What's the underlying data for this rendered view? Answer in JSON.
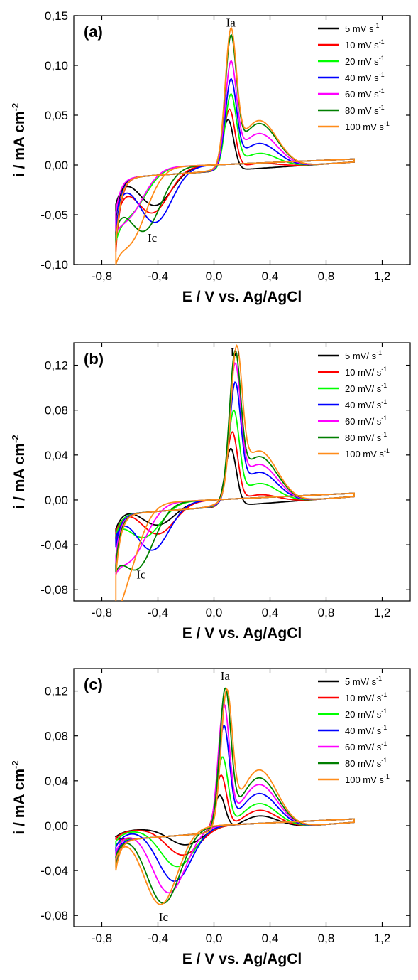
{
  "chart_data": [
    {
      "type": "line",
      "panel_label": "(a)",
      "xlabel": "E / V vs. Ag/AgCl",
      "ylabel": "i / mA cm",
      "ylabel_sup": "-2",
      "xlim": [
        -1.0,
        1.4
      ],
      "ylim": [
        -0.1,
        0.15
      ],
      "xticks": [
        -0.8,
        -0.4,
        0.0,
        0.4,
        0.8,
        1.2
      ],
      "xtick_labels": [
        "-0,8",
        "-0,4",
        "0,0",
        "0,4",
        "0,8",
        "1,2"
      ],
      "yticks": [
        -0.1,
        -0.05,
        0.0,
        0.05,
        0.1,
        0.15
      ],
      "ytick_labels": [
        "-0,10",
        "-0,05",
        "0,00",
        "0,05",
        "0,10",
        "0,15"
      ],
      "annotations": [
        {
          "text": "Ia",
          "x": 0.12,
          "y": 0.139
        },
        {
          "text": "Ic",
          "x": -0.44,
          "y": -0.077
        }
      ],
      "legend_position": "top-right",
      "series": [
        {
          "name": "5 mV s",
          "sup": "-1",
          "color": "#000000",
          "peak_x": 0.1,
          "peak_y": 0.051,
          "shoulder_y": 0.0,
          "cath_x": -0.42,
          "cath_y": -0.038,
          "end_y": -0.055
        },
        {
          "name": "10 mV s",
          "sup": "-1",
          "color": "#ff0000",
          "peak_x": 0.11,
          "peak_y": 0.06,
          "shoulder_y": 0.005,
          "cath_x": -0.44,
          "cath_y": -0.045,
          "end_y": -0.087
        },
        {
          "name": "20 mV s",
          "sup": "-1",
          "color": "#00ff00",
          "peak_x": 0.12,
          "peak_y": 0.072,
          "shoulder_y": 0.015,
          "cath_x": -0.6,
          "cath_y": -0.04,
          "end_y": -0.075
        },
        {
          "name": "40 mV s",
          "sup": "-1",
          "color": "#0000ff",
          "peak_x": 0.12,
          "peak_y": 0.084,
          "shoulder_y": 0.025,
          "cath_x": -0.42,
          "cath_y": -0.055,
          "end_y": -0.07
        },
        {
          "name": "60 mV s",
          "sup": "-1",
          "color": "#ff00ff",
          "peak_x": 0.12,
          "peak_y": 0.099,
          "shoulder_y": 0.035,
          "cath_x": -0.62,
          "cath_y": -0.045,
          "end_y": -0.048
        },
        {
          "name": "80 mV s",
          "sup": "-1",
          "color": "#007f00",
          "peak_x": 0.12,
          "peak_y": 0.122,
          "shoulder_y": 0.045,
          "cath_x": -0.5,
          "cath_y": -0.062,
          "end_y": -0.08
        },
        {
          "name": "100 mV s",
          "sup": "-1",
          "color": "#ff8c1a",
          "peak_x": 0.12,
          "peak_y": 0.128,
          "shoulder_y": 0.048,
          "cath_x": -0.6,
          "cath_y": -0.068,
          "end_y": -0.08
        }
      ]
    },
    {
      "type": "line",
      "panel_label": "(b)",
      "xlabel": "E / V vs. Ag/AgCl",
      "ylabel": "i / mA cm",
      "ylabel_sup": "-2",
      "xlim": [
        -1.0,
        1.4
      ],
      "ylim": [
        -0.09,
        0.14
      ],
      "xticks": [
        -0.8,
        -0.4,
        0.0,
        0.4,
        0.8,
        1.2
      ],
      "xtick_labels": [
        "-0,8",
        "-0,4",
        "0,0",
        "0,4",
        "0,8",
        "1,2"
      ],
      "yticks": [
        -0.08,
        -0.04,
        0.0,
        0.04,
        0.08,
        0.12
      ],
      "ytick_labels": [
        "-0,08",
        "-0,04",
        "0,00",
        "0,04",
        "0,08",
        "0,12"
      ],
      "annotations": [
        {
          "text": "Ia",
          "x": 0.15,
          "y": 0.128
        },
        {
          "text": "Ic",
          "x": -0.52,
          "y": -0.07
        }
      ],
      "legend_position": "top-right",
      "series": [
        {
          "name": "5 mV/ s",
          "sup": "-1",
          "color": "#000000",
          "peak_x": 0.12,
          "peak_y": 0.051,
          "shoulder_y": 0.0,
          "cath_x": -0.4,
          "cath_y": -0.02,
          "end_y": -0.035
        },
        {
          "name": "10 mV/ s",
          "sup": "-1",
          "color": "#ff0000",
          "peak_x": 0.13,
          "peak_y": 0.063,
          "shoulder_y": 0.008,
          "cath_x": -0.4,
          "cath_y": -0.028,
          "end_y": -0.04
        },
        {
          "name": "20 mV/ s",
          "sup": "-1",
          "color": "#00ff00",
          "peak_x": 0.14,
          "peak_y": 0.078,
          "shoulder_y": 0.018,
          "cath_x": -0.5,
          "cath_y": -0.03,
          "end_y": -0.033
        },
        {
          "name": "40 mV/ s",
          "sup": "-1",
          "color": "#0000ff",
          "peak_x": 0.15,
          "peak_y": 0.098,
          "shoulder_y": 0.028,
          "cath_x": -0.44,
          "cath_y": -0.042,
          "end_y": -0.042
        },
        {
          "name": "60 mV/ s",
          "sup": "-1",
          "color": "#ff00ff",
          "peak_x": 0.15,
          "peak_y": 0.112,
          "shoulder_y": 0.035,
          "cath_x": -0.6,
          "cath_y": -0.046,
          "end_y": -0.05
        },
        {
          "name": "80 mV/ s",
          "sup": "-1",
          "color": "#007f00",
          "peak_x": 0.15,
          "peak_y": 0.12,
          "shoulder_y": 0.042,
          "cath_x": -0.55,
          "cath_y": -0.056,
          "end_y": -0.058
        },
        {
          "name": "100 mV s",
          "sup": "-1",
          "color": "#ff8c1a",
          "peak_x": 0.16,
          "peak_y": 0.12,
          "shoulder_y": 0.047,
          "cath_x": -0.67,
          "cath_y": -0.067,
          "end_y": -0.068
        }
      ]
    },
    {
      "type": "line",
      "panel_label": "(c)",
      "xlabel": "E / V vs. Ag/AgCl",
      "ylabel": "i / mA cm",
      "ylabel_sup": "-2",
      "xlim": [
        -1.0,
        1.4
      ],
      "ylim": [
        -0.09,
        0.14
      ],
      "xticks": [
        -0.8,
        -0.4,
        0.0,
        0.4,
        0.8,
        1.2
      ],
      "xtick_labels": [
        "-0,8",
        "-0,4",
        "0,0",
        "0,4",
        "0,8",
        "1,2"
      ],
      "yticks": [
        -0.08,
        -0.04,
        0.0,
        0.04,
        0.08,
        0.12
      ],
      "ytick_labels": [
        "-0,08",
        "-0,04",
        "0,00",
        "0,04",
        "0,08",
        "0,12"
      ],
      "annotations": [
        {
          "text": "Ia",
          "x": 0.08,
          "y": 0.13
        },
        {
          "text": "Ic",
          "x": -0.36,
          "y": -0.085
        }
      ],
      "legend_position": "top-right",
      "series": [
        {
          "name": "5 mV/ s",
          "sup": "-1",
          "color": "#000000",
          "peak_x": 0.04,
          "peak_y": 0.032,
          "shoulder_y": 0.012,
          "cath_x": -0.2,
          "cath_y": -0.016,
          "end_y": -0.01
        },
        {
          "name": "10 mV/ s",
          "sup": "-1",
          "color": "#ff0000",
          "peak_x": 0.05,
          "peak_y": 0.049,
          "shoulder_y": 0.017,
          "cath_x": -0.22,
          "cath_y": -0.025,
          "end_y": -0.012
        },
        {
          "name": "20 mV/ s",
          "sup": "-1",
          "color": "#00ff00",
          "peak_x": 0.06,
          "peak_y": 0.064,
          "shoulder_y": 0.023,
          "cath_x": -0.26,
          "cath_y": -0.035,
          "end_y": -0.017
        },
        {
          "name": "40 mV/ s",
          "sup": "-1",
          "color": "#0000ff",
          "peak_x": 0.07,
          "peak_y": 0.09,
          "shoulder_y": 0.032,
          "cath_x": -0.28,
          "cath_y": -0.048,
          "end_y": -0.025
        },
        {
          "name": "60 mV/ s",
          "sup": "-1",
          "color": "#ff00ff",
          "peak_x": 0.07,
          "peak_y": 0.108,
          "shoulder_y": 0.04,
          "cath_x": -0.32,
          "cath_y": -0.058,
          "end_y": -0.032
        },
        {
          "name": "80 mV/ s",
          "sup": "-1",
          "color": "#007f00",
          "peak_x": 0.08,
          "peak_y": 0.12,
          "shoulder_y": 0.046,
          "cath_x": -0.36,
          "cath_y": -0.067,
          "end_y": -0.037
        },
        {
          "name": "100 mV s",
          "sup": "-1",
          "color": "#ff8c1a",
          "peak_x": 0.09,
          "peak_y": 0.116,
          "shoulder_y": 0.053,
          "cath_x": -0.38,
          "cath_y": -0.068,
          "end_y": -0.04
        }
      ]
    }
  ]
}
